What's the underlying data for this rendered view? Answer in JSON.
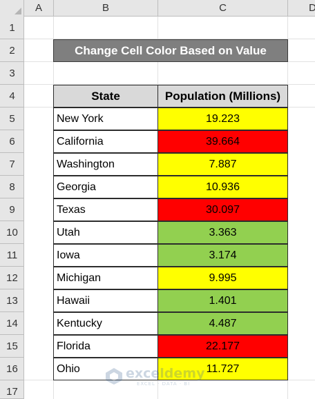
{
  "columns": [
    "A",
    "B",
    "C",
    "D"
  ],
  "rows": [
    "1",
    "2",
    "3",
    "4",
    "5",
    "6",
    "7",
    "8",
    "9",
    "10",
    "11",
    "12",
    "13",
    "14",
    "15",
    "16",
    "17"
  ],
  "title": "Change Cell Color Based on Value",
  "table": {
    "headers": [
      "State",
      "Population (Millions)"
    ],
    "rows": [
      {
        "state": "New York",
        "population": "19.223",
        "color": "#ffff00"
      },
      {
        "state": "California",
        "population": "39.664",
        "color": "#ff0000"
      },
      {
        "state": "Washington",
        "population": "7.887",
        "color": "#ffff00"
      },
      {
        "state": "Georgia",
        "population": "10.936",
        "color": "#ffff00"
      },
      {
        "state": "Texas",
        "population": "30.097",
        "color": "#ff0000"
      },
      {
        "state": "Utah",
        "population": "3.363",
        "color": "#92d050"
      },
      {
        "state": "Iowa",
        "population": "3.174",
        "color": "#92d050"
      },
      {
        "state": "Michigan",
        "population": "9.995",
        "color": "#ffff00"
      },
      {
        "state": "Hawaii",
        "population": "1.401",
        "color": "#92d050"
      },
      {
        "state": "Kentucky",
        "population": "4.487",
        "color": "#92d050"
      },
      {
        "state": "Florida",
        "population": "22.177",
        "color": "#ff0000"
      },
      {
        "state": "Ohio",
        "population": "11.727",
        "color": "#ffff00"
      }
    ]
  },
  "watermark": {
    "name": "exceldemy",
    "tagline": "EXCEL · DATA · BI",
    "icon": "exceldemy-logo-icon"
  }
}
